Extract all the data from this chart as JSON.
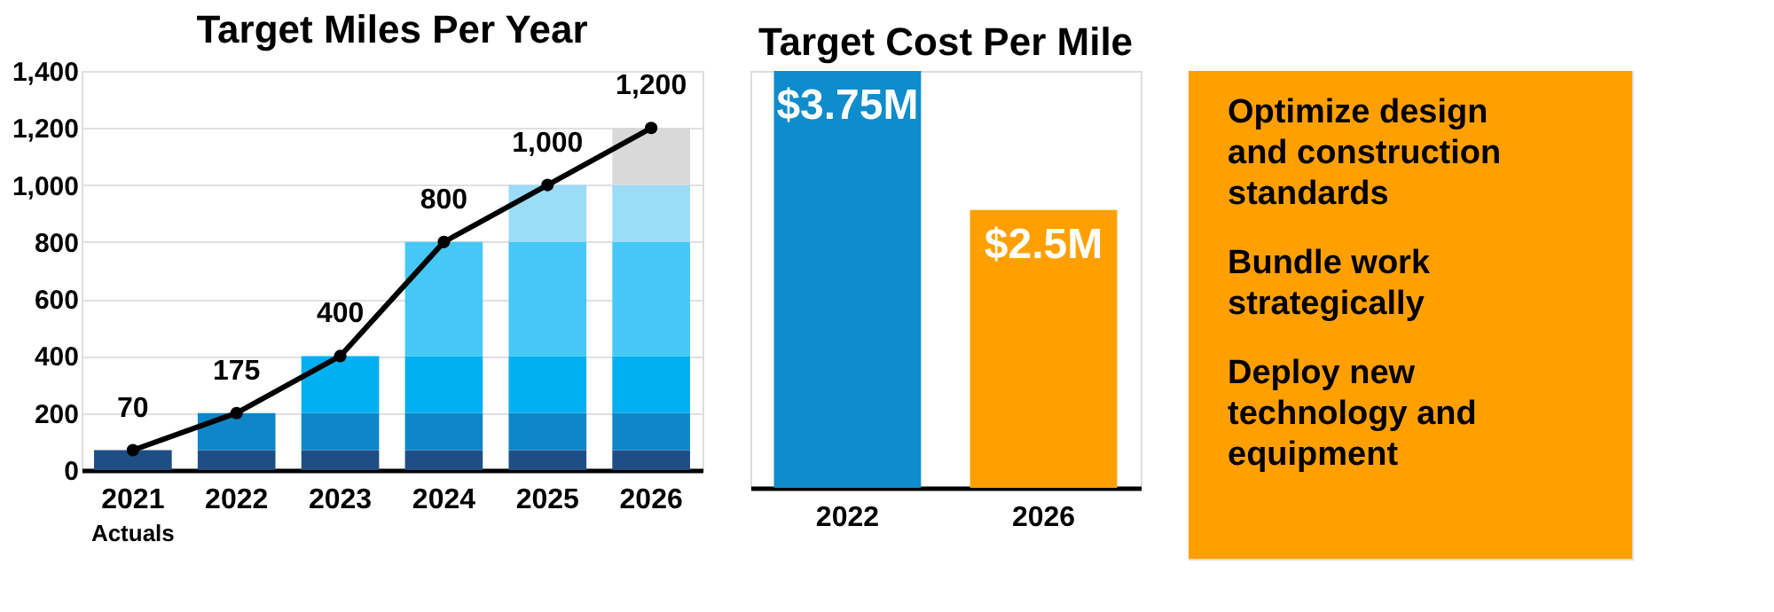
{
  "chart_data": [
    {
      "type": "bar",
      "title": "Target Miles Per Year",
      "categories": [
        "2021",
        "2022",
        "2023",
        "2024",
        "2025",
        "2026"
      ],
      "stacked": true,
      "ylim": [
        0,
        1400
      ],
      "yticks": [
        0,
        200,
        400,
        600,
        800,
        {
          "value": 1000,
          "label": "1,000"
        },
        {
          "value": 1200,
          "label": "1,200"
        },
        {
          "value": 1400,
          "label": "1,400"
        }
      ],
      "grid": "y",
      "series": [
        {
          "color": "#1f4e85",
          "values": [
            70,
            70,
            70,
            70,
            70,
            70
          ]
        },
        {
          "color": "#0e86c8",
          "values": [
            null,
            130,
            130,
            130,
            130,
            130
          ]
        },
        {
          "color": "#00b0f0",
          "values": [
            null,
            null,
            200,
            200,
            200,
            200
          ]
        },
        {
          "color": "#45c8f5",
          "values": [
            null,
            null,
            null,
            400,
            400,
            400
          ]
        },
        {
          "color": "#9bdcf8",
          "values": [
            null,
            null,
            null,
            null,
            200,
            200
          ]
        },
        {
          "color": "#d9d9d9",
          "values": [
            null,
            null,
            null,
            null,
            null,
            200
          ]
        },
        {
          "type": "line",
          "color": "#000000",
          "marker": "circle",
          "values": [
            70,
            200,
            400,
            800,
            1000,
            1200
          ]
        }
      ],
      "annotations": [
        "Actuals",
        {
          "text": "70",
          "x": "2021",
          "y": 70
        },
        {
          "text": "175",
          "x": "2022",
          "y": 200
        },
        {
          "text": "400",
          "x": "2023",
          "y": 400
        },
        {
          "text": "800",
          "x": "2024",
          "y": 800
        },
        {
          "text": "1,000",
          "x": "2025",
          "y": 1000
        },
        {
          "text": "1,200",
          "x": "2026",
          "y": 1200
        }
      ]
    },
    {
      "type": "bar",
      "title": "Target Cost Per Mile",
      "categories": [
        "2022",
        "2026"
      ],
      "values": [
        3.75,
        2.5
      ],
      "colors": [
        "#0e8ccb",
        "#ffa000"
      ],
      "value_labels": [
        "$3.75M",
        "$2.5M"
      ],
      "grid": false
    },
    {
      "type": "other",
      "annotations": [
        "Optimize design and construction standards",
        "Bundle work strategically",
        "Deploy new technology and equipment"
      ]
    }
  ]
}
